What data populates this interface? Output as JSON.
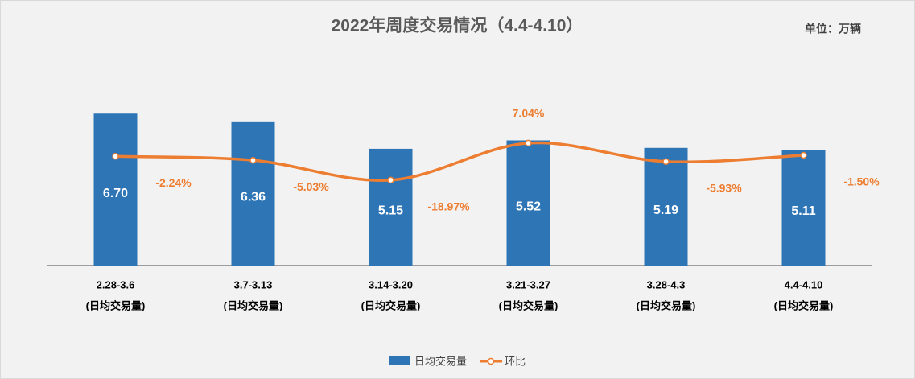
{
  "chart_data": {
    "type": "bar",
    "title": "2022年周度交易情况（4.4-4.10）",
    "subtitle": "单位：万辆",
    "categories": [
      [
        "2.28-3.6",
        "(日均交易量)"
      ],
      [
        "3.7-3.13",
        "(日均交易量)"
      ],
      [
        "3.14-3.20",
        "(日均交易量)"
      ],
      [
        "3.21-3.27",
        "(日均交易量)"
      ],
      [
        "3.28-4.3",
        "(日均交易量)"
      ],
      [
        "4.4-4.10",
        "(日均交易量)"
      ]
    ],
    "series": [
      {
        "name": "日均交易量",
        "type": "bar",
        "color": "#2e75b6",
        "values": [
          6.7,
          6.36,
          5.15,
          5.52,
          5.19,
          5.11
        ],
        "value_labels": [
          "6.70",
          "6.36",
          "5.15",
          "5.52",
          "5.19",
          "5.11"
        ]
      },
      {
        "name": "环比",
        "type": "line",
        "axis": "y2",
        "color": "#ed7d31",
        "values": [
          -2.24,
          -5.03,
          -18.97,
          7.04,
          -5.93,
          -1.5
        ],
        "value_labels": [
          "-2.24%",
          "-5.03%",
          "-18.97%",
          "7.04%",
          "-5.93%",
          "-1.50%"
        ]
      }
    ],
    "ylim": [
      0,
      9.3
    ],
    "y2lim": [
      -79,
      69.2
    ],
    "legend": "bottom"
  }
}
